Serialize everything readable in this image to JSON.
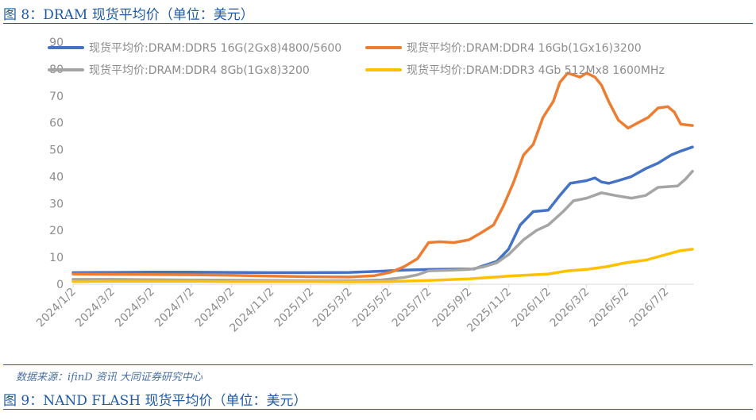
{
  "header": {
    "figure_title": "图 8：DRAM 现货平均价（单位：美元）"
  },
  "footer": {
    "source": "数据来源：ifinD 资讯  大同证券研究中心",
    "next_figure_title": "图 9：NAND FLASH 现货平均价（单位：美元）"
  },
  "chart_data": {
    "type": "line",
    "title": "",
    "xlabel": "",
    "ylabel": "",
    "ylim": [
      0,
      90
    ],
    "yticks": [
      "0",
      "10",
      "20",
      "30",
      "40",
      "50",
      "60",
      "70",
      "80",
      "90"
    ],
    "xlim": [
      "2024-01-02",
      "2026-08-12"
    ],
    "xtick_labels": [
      "2024/1/2",
      "2024/3/2",
      "2024/5/2",
      "2024/7/2",
      "2024/9/2",
      "2024/11/2",
      "2025/1/2",
      "2025/3/2",
      "2025/5/2",
      "2025/7/2",
      "2025/9/2",
      "2025/11/2",
      "2026/1/2",
      "2026/3/2",
      "2026/5/2",
      "2026/7/2"
    ],
    "xtick_dates": [
      "2024-01-02",
      "2024-03-02",
      "2024-05-02",
      "2024-07-02",
      "2024-09-02",
      "2024-11-02",
      "2025-01-02",
      "2025-03-02",
      "2025-05-02",
      "2025-07-02",
      "2025-09-02",
      "2025-11-02",
      "2026-01-02",
      "2026-03-02",
      "2026-05-02",
      "2026-07-02"
    ],
    "grid": false,
    "legend_position": "top",
    "series": [
      {
        "name": "现货平均价:DRAM:DDR5 16G(2Gx8)4800/5600",
        "color": "#4472c4",
        "points": [
          [
            "2024-01-02",
            4.3
          ],
          [
            "2024-03-02",
            4.4
          ],
          [
            "2024-05-02",
            4.5
          ],
          [
            "2024-07-02",
            4.5
          ],
          [
            "2024-09-02",
            4.4
          ],
          [
            "2024-11-02",
            4.3
          ],
          [
            "2025-01-02",
            4.3
          ],
          [
            "2025-03-02",
            4.4
          ],
          [
            "2025-04-15",
            4.8
          ],
          [
            "2025-05-20",
            5.2
          ],
          [
            "2025-07-02",
            5.5
          ],
          [
            "2025-08-01",
            5.6
          ],
          [
            "2025-09-10",
            5.7
          ],
          [
            "2025-10-15",
            8.5
          ],
          [
            "2025-11-02",
            13.0
          ],
          [
            "2025-11-20",
            22.0
          ],
          [
            "2025-12-10",
            27.0
          ],
          [
            "2026-01-02",
            27.5
          ],
          [
            "2026-01-20",
            33.0
          ],
          [
            "2026-02-05",
            37.5
          ],
          [
            "2026-03-02",
            38.5
          ],
          [
            "2026-03-15",
            39.5
          ],
          [
            "2026-03-25",
            38.0
          ],
          [
            "2026-04-05",
            37.5
          ],
          [
            "2026-04-20",
            38.5
          ],
          [
            "2026-05-10",
            40.0
          ],
          [
            "2026-06-01",
            43.0
          ],
          [
            "2026-06-20",
            45.0
          ],
          [
            "2026-07-10",
            48.0
          ],
          [
            "2026-07-25",
            49.5
          ],
          [
            "2026-08-12",
            51.0
          ]
        ]
      },
      {
        "name": "现货平均价:DRAM:DDR4 16Gb(1Gx16)3200",
        "color": "#ed7d31",
        "points": [
          [
            "2024-01-02",
            3.8
          ],
          [
            "2024-03-02",
            3.7
          ],
          [
            "2024-05-02",
            3.6
          ],
          [
            "2024-07-02",
            3.5
          ],
          [
            "2024-09-02",
            3.3
          ],
          [
            "2024-11-02",
            3.0
          ],
          [
            "2025-01-02",
            2.8
          ],
          [
            "2025-03-02",
            2.7
          ],
          [
            "2025-04-10",
            3.2
          ],
          [
            "2025-05-05",
            4.5
          ],
          [
            "2025-05-25",
            6.5
          ],
          [
            "2025-06-15",
            9.5
          ],
          [
            "2025-07-02",
            15.5
          ],
          [
            "2025-07-20",
            15.8
          ],
          [
            "2025-08-10",
            15.5
          ],
          [
            "2025-09-02",
            16.5
          ],
          [
            "2025-09-20",
            19.0
          ],
          [
            "2025-10-10",
            22.0
          ],
          [
            "2025-10-25",
            29.0
          ],
          [
            "2025-11-10",
            38.0
          ],
          [
            "2025-11-25",
            48.0
          ],
          [
            "2025-12-10",
            52.0
          ],
          [
            "2025-12-25",
            62.0
          ],
          [
            "2026-01-10",
            68.0
          ],
          [
            "2026-01-20",
            75.0
          ],
          [
            "2026-02-01",
            78.5
          ],
          [
            "2026-02-20",
            77.0
          ],
          [
            "2026-03-02",
            78.5
          ],
          [
            "2026-03-15",
            77.0
          ],
          [
            "2026-03-25",
            74.0
          ],
          [
            "2026-04-05",
            68.0
          ],
          [
            "2026-04-20",
            61.0
          ],
          [
            "2026-05-05",
            58.0
          ],
          [
            "2026-05-20",
            60.0
          ],
          [
            "2026-06-05",
            62.0
          ],
          [
            "2026-06-20",
            65.5
          ],
          [
            "2026-07-05",
            66.0
          ],
          [
            "2026-07-15",
            64.0
          ],
          [
            "2026-07-25",
            59.5
          ],
          [
            "2026-08-12",
            59.0
          ]
        ]
      },
      {
        "name": "现货平均价:DRAM:DDR4 8Gb(1Gx8)3200",
        "color": "#a5a5a5",
        "points": [
          [
            "2024-01-02",
            1.8
          ],
          [
            "2024-03-02",
            1.8
          ],
          [
            "2024-05-02",
            1.7
          ],
          [
            "2024-07-02",
            1.6
          ],
          [
            "2024-09-02",
            1.5
          ],
          [
            "2024-11-02",
            1.4
          ],
          [
            "2025-01-02",
            1.3
          ],
          [
            "2025-03-02",
            1.3
          ],
          [
            "2025-04-20",
            1.6
          ],
          [
            "2025-05-25",
            2.5
          ],
          [
            "2025-06-15",
            3.5
          ],
          [
            "2025-07-02",
            5.0
          ],
          [
            "2025-08-01",
            5.2
          ],
          [
            "2025-09-02",
            5.5
          ],
          [
            "2025-09-25",
            6.5
          ],
          [
            "2025-10-15",
            8.0
          ],
          [
            "2025-11-02",
            11.0
          ],
          [
            "2025-11-25",
            16.5
          ],
          [
            "2025-12-15",
            20.0
          ],
          [
            "2026-01-02",
            22.0
          ],
          [
            "2026-01-25",
            27.0
          ],
          [
            "2026-02-10",
            31.0
          ],
          [
            "2026-03-02",
            32.0
          ],
          [
            "2026-03-25",
            34.0
          ],
          [
            "2026-04-15",
            33.0
          ],
          [
            "2026-05-10",
            32.0
          ],
          [
            "2026-06-01",
            33.0
          ],
          [
            "2026-06-20",
            36.0
          ],
          [
            "2026-07-20",
            36.5
          ],
          [
            "2026-08-01",
            39.0
          ],
          [
            "2026-08-12",
            42.0
          ]
        ]
      },
      {
        "name": "现货平均价:DRAM:DDR3 4Gb 512Mx8 1600MHz",
        "color": "#ffc000",
        "points": [
          [
            "2024-01-02",
            1.0
          ],
          [
            "2024-03-02",
            1.1
          ],
          [
            "2024-05-02",
            1.1
          ],
          [
            "2024-07-02",
            1.1
          ],
          [
            "2024-09-02",
            1.0
          ],
          [
            "2024-11-02",
            1.0
          ],
          [
            "2025-01-02",
            1.0
          ],
          [
            "2025-03-02",
            0.9
          ],
          [
            "2025-05-02",
            1.0
          ],
          [
            "2025-07-02",
            1.4
          ],
          [
            "2025-09-02",
            2.0
          ],
          [
            "2025-11-02",
            3.0
          ],
          [
            "2026-01-02",
            3.8
          ],
          [
            "2026-02-01",
            5.0
          ],
          [
            "2026-03-02",
            5.5
          ],
          [
            "2026-04-01",
            6.5
          ],
          [
            "2026-05-02",
            8.0
          ],
          [
            "2026-06-02",
            9.0
          ],
          [
            "2026-07-02",
            11.0
          ],
          [
            "2026-07-25",
            12.5
          ],
          [
            "2026-08-12",
            13.0
          ]
        ]
      }
    ]
  }
}
